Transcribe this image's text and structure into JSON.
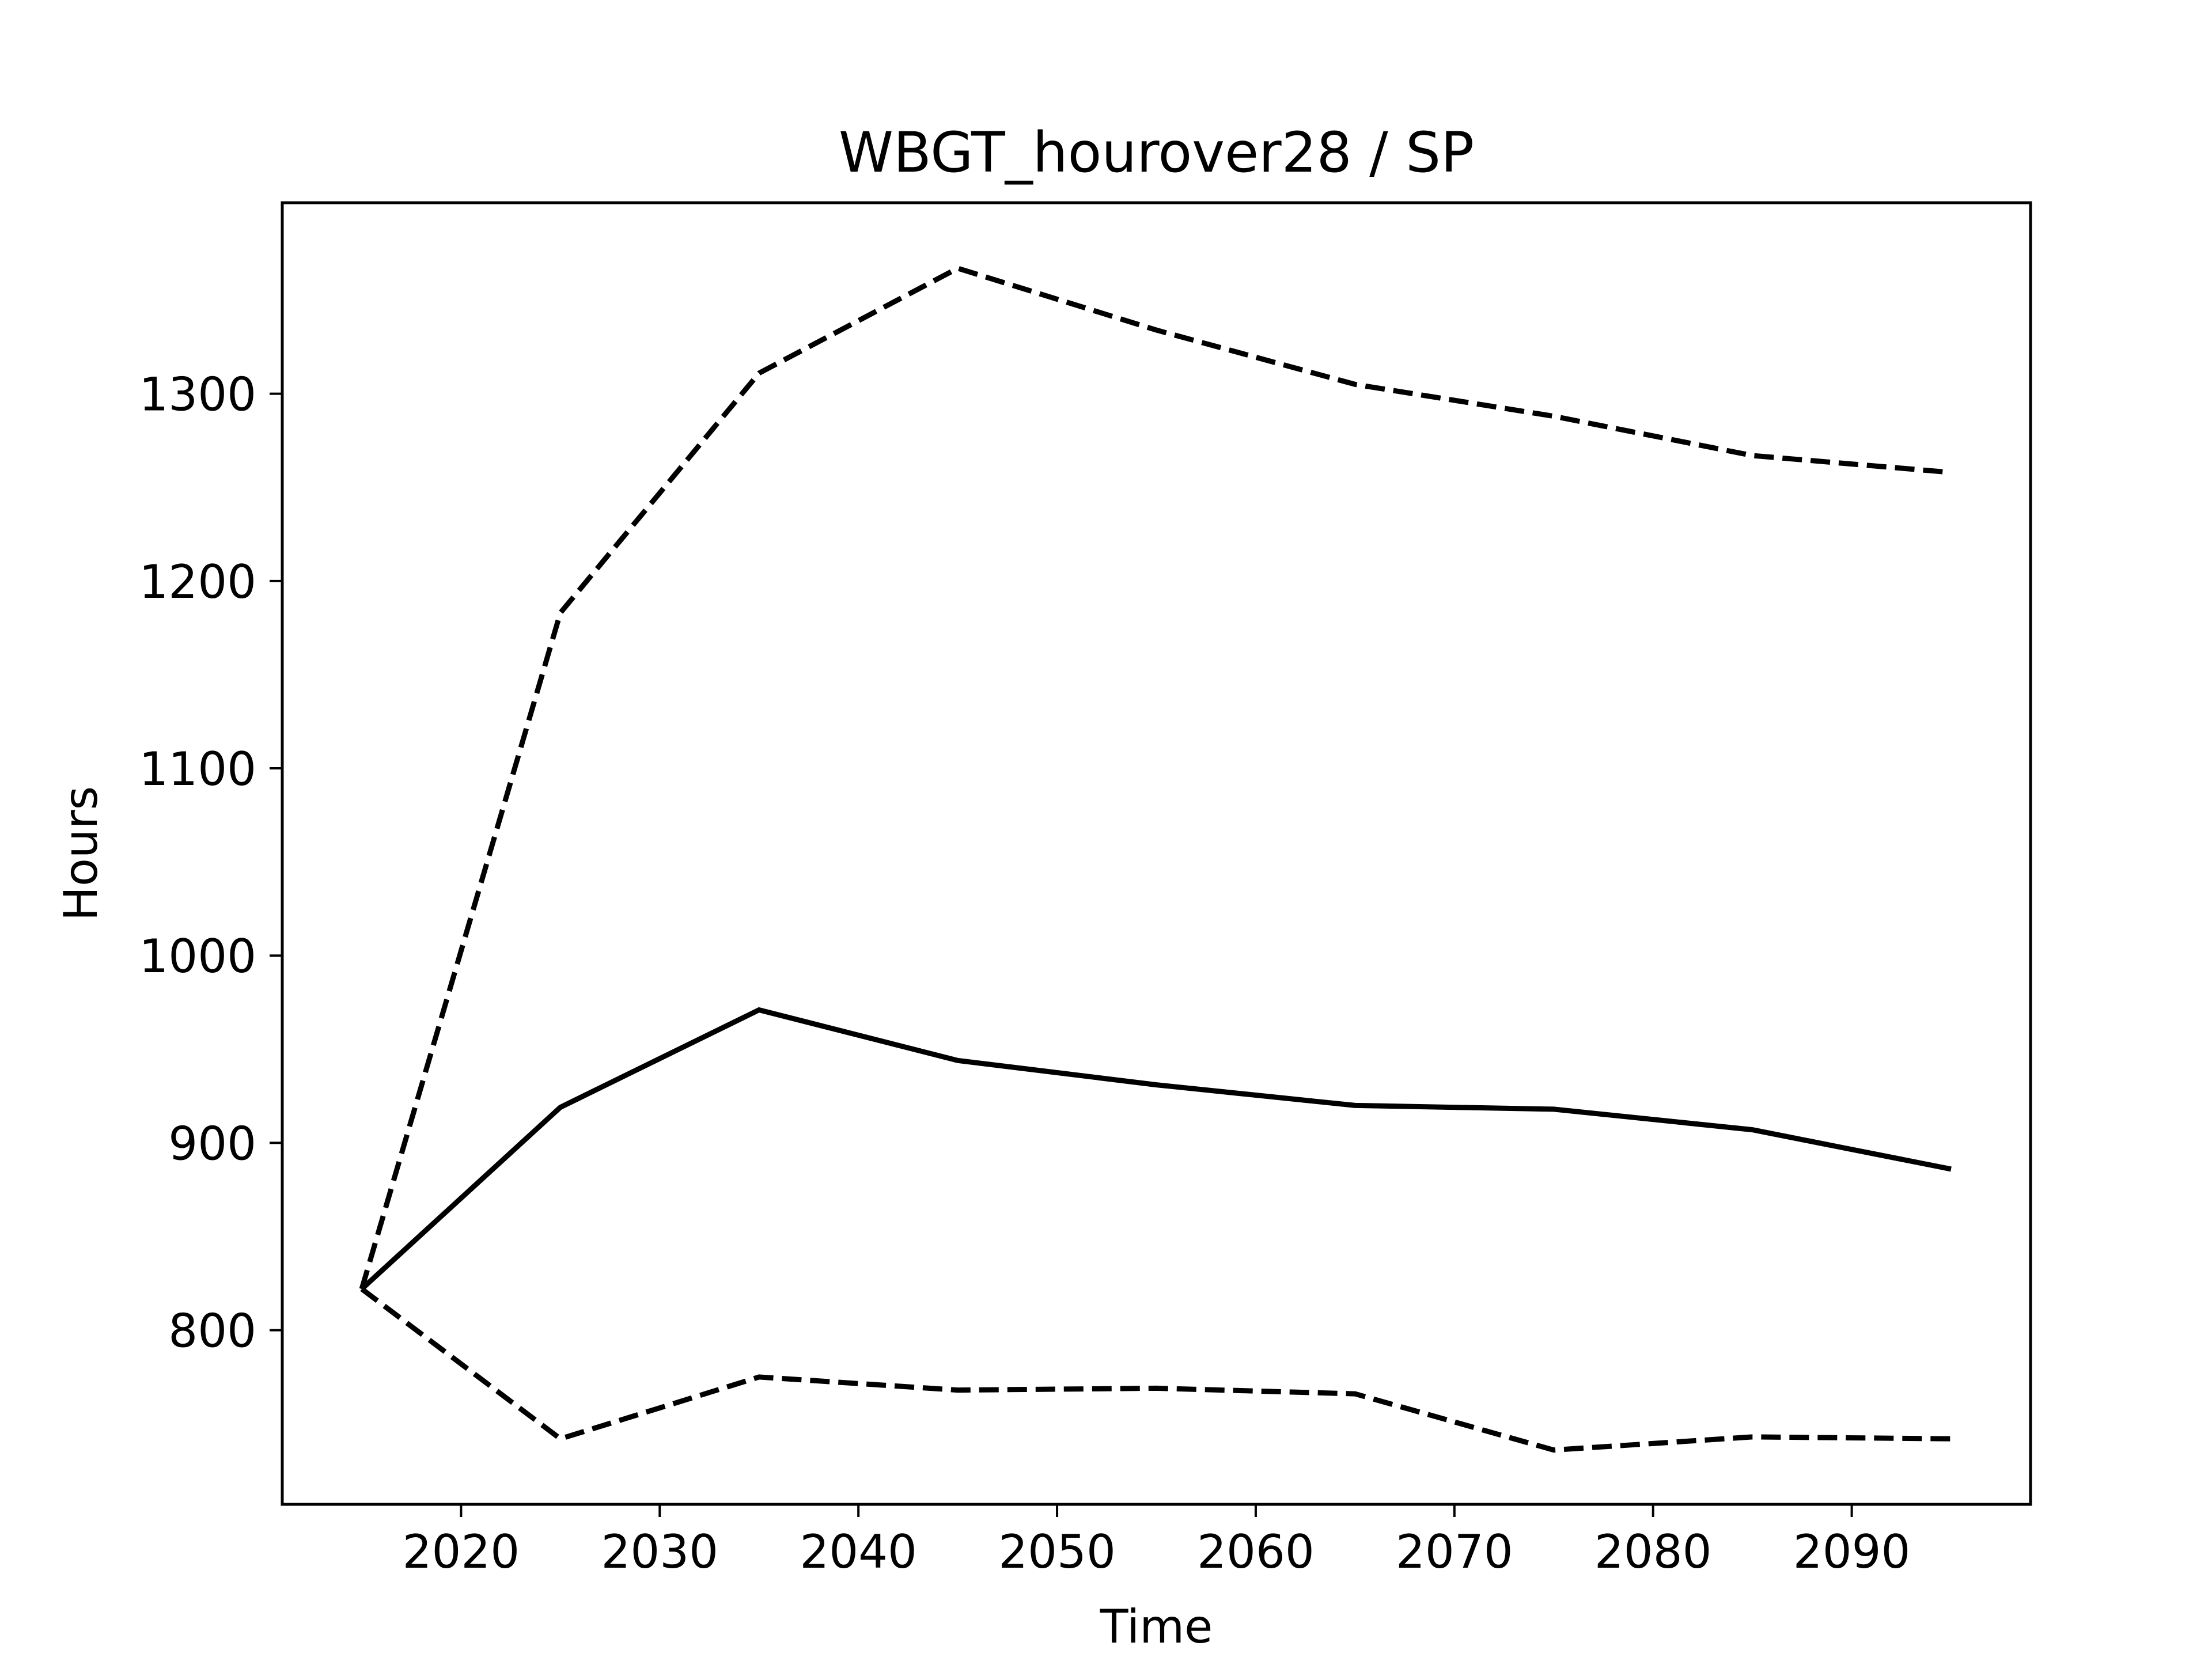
{
  "chart_data": {
    "type": "line",
    "title": "WBGT_hourover28 / SP",
    "xlabel": "Time",
    "ylabel": "Hours",
    "x": [
      2015,
      2025,
      2035,
      2045,
      2055,
      2065,
      2075,
      2085,
      2095
    ],
    "xlim": [
      2011,
      2099
    ],
    "ylim": [
      707,
      1402
    ],
    "xticks": [
      2020,
      2030,
      2040,
      2050,
      2060,
      2070,
      2080,
      2090
    ],
    "yticks": [
      800,
      900,
      1000,
      1100,
      1200,
      1300
    ],
    "grid": false,
    "legend": "none",
    "series": [
      {
        "style": "solid",
        "color": "#000000",
        "values": [
          822,
          919,
          971,
          944,
          931,
          920,
          918,
          907,
          886
        ]
      },
      {
        "style": "dashed",
        "color": "#000000",
        "values": [
          822,
          1183,
          1311,
          1367,
          1334,
          1305,
          1288,
          1267,
          1258
        ]
      },
      {
        "style": "dashed",
        "color": "#000000",
        "values": [
          822,
          742,
          775,
          768,
          769,
          766,
          736,
          743,
          742
        ]
      }
    ]
  }
}
